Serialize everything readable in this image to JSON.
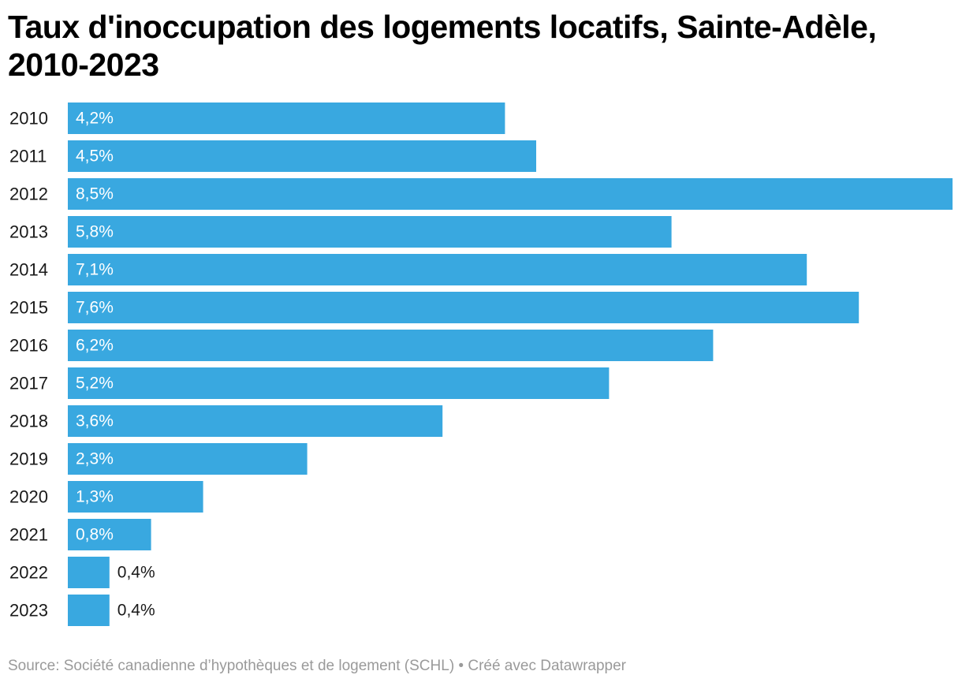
{
  "title": "Taux d'inoccupation des logements locatifs, Sainte-Adèle, 2010-2023",
  "footer": "Source: Société canadienne d’hypothèques et de logement (SCHL) • Créé avec Datawrapper",
  "colors": {
    "bar": "#39a8e0",
    "label_inside": "#ffffff",
    "label_outside": "#1a1a1a",
    "footer": "#9a9a9a"
  },
  "chart_data": {
    "type": "bar",
    "orientation": "horizontal",
    "categories": [
      "2010",
      "2011",
      "2012",
      "2013",
      "2014",
      "2015",
      "2016",
      "2017",
      "2018",
      "2019",
      "2020",
      "2021",
      "2022",
      "2023"
    ],
    "values": [
      4.2,
      4.5,
      8.5,
      5.8,
      7.1,
      7.6,
      6.2,
      5.2,
      3.6,
      2.3,
      1.3,
      0.8,
      0.4,
      0.4
    ],
    "value_labels": [
      "4,2%",
      "4,5%",
      "8,5%",
      "5,8%",
      "7,1%",
      "7,6%",
      "6,2%",
      "5,2%",
      "3,6%",
      "2,3%",
      "1,3%",
      "0,8%",
      "0,4%",
      "0,4%"
    ],
    "xlim": [
      0,
      8.5
    ],
    "grid": false,
    "legend": "none"
  }
}
